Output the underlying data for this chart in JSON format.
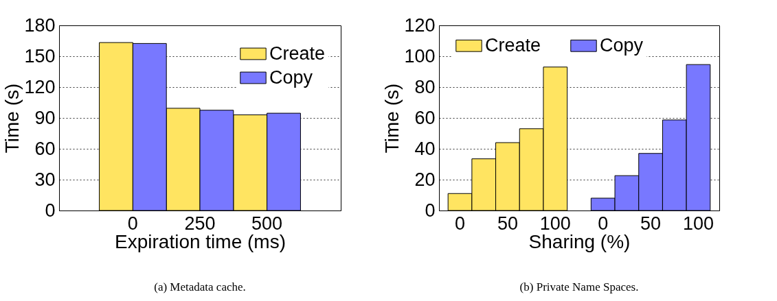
{
  "chart_data": [
    {
      "type": "bar",
      "categories": [
        "0",
        "250",
        "500"
      ],
      "xlabel": "Expiration time (ms)",
      "ylabel": "Time (s)",
      "ylim": [
        0,
        180
      ],
      "yticks": [
        0,
        30,
        60,
        90,
        120,
        150,
        180
      ],
      "grid": "y",
      "legend": "top right",
      "series": [
        {
          "name": "Create",
          "color": "#ffe461",
          "values": [
            163.3,
            99.4,
            93
          ]
        },
        {
          "name": "Copy",
          "color": "#7878ff",
          "values": [
            162.4,
            97.5,
            94.6
          ]
        }
      ],
      "annotations": [
        "(a) Metadata cache."
      ]
    },
    {
      "type": "bar",
      "categories": [
        "0",
        null,
        "50",
        null,
        "100",
        null,
        "0",
        null,
        "50",
        null,
        "100"
      ],
      "xlabel": "Sharing (%)",
      "ylabel": "Time (s)",
      "ylim": [
        0,
        120
      ],
      "yticks": [
        0,
        20,
        40,
        60,
        80,
        100,
        120
      ],
      "grid": "y",
      "legend": "top",
      "series": [
        {
          "name": "Create",
          "color": "#ffe461",
          "values": [
            11,
            33.5,
            44,
            53,
            93,
            null,
            null,
            null,
            null,
            null,
            null
          ]
        },
        {
          "name": "Copy",
          "color": "#7878ff",
          "values": [
            null,
            null,
            null,
            null,
            null,
            null,
            8,
            22.6,
            37,
            58.7,
            94.6
          ]
        }
      ],
      "annotations": [
        "(b) Private Name Spaces."
      ]
    }
  ]
}
